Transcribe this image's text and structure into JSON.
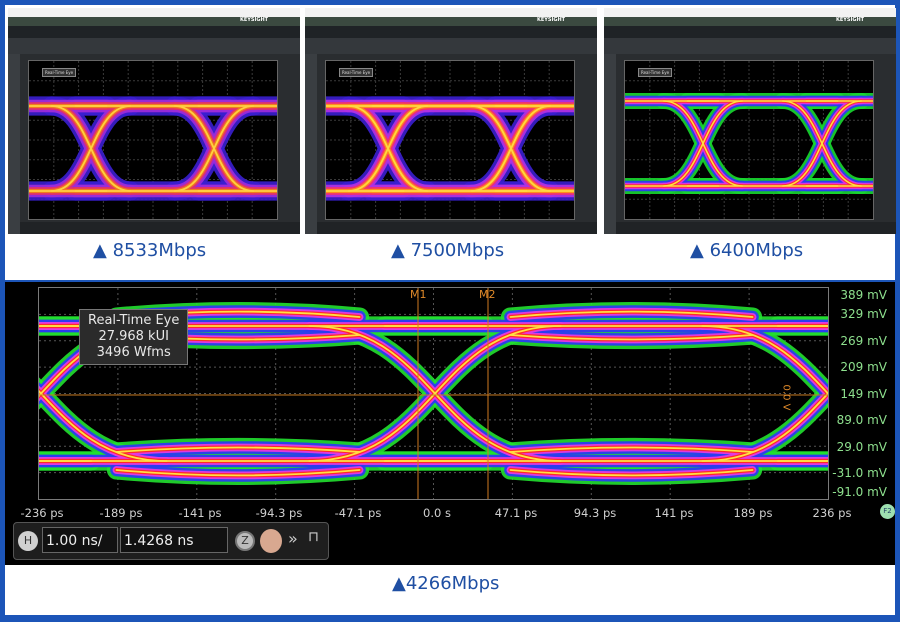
{
  "panels": [
    {
      "caption": "▲ 8533Mbps",
      "brand": "KEYSIGHT",
      "readout": "Real-Time Eye",
      "palette": [
        "#3a1fd0",
        "#9b2bd8",
        "#e0306a",
        "#f07a20",
        "#ffd040"
      ]
    },
    {
      "caption": "▲ 7500Mbps",
      "brand": "KEYSIGHT",
      "readout": "Real-Time Eye",
      "palette": [
        "#3a1fd0",
        "#b030e0",
        "#f03070",
        "#ff8a20",
        "#ffd840"
      ]
    },
    {
      "caption": "▲ 6400Mbps",
      "brand": "KEYSIGHT",
      "readout": "Real-Time Eye",
      "palette": [
        "#18d830",
        "#2a3cf0",
        "#e030e0",
        "#ff3030",
        "#ffe040"
      ]
    }
  ],
  "main": {
    "caption": "▲4266Mbps",
    "readout": {
      "title": "Real-Time Eye",
      "ui": "27.968 kUI",
      "waveforms": "3496 Wfms"
    },
    "y_labels": [
      "389 mV",
      "329 mV",
      "269 mV",
      "209 mV",
      "149 mV",
      "89.0 mV",
      "29.0 mV",
      "-31.0 mV",
      "-91.0 mV"
    ],
    "x_labels": [
      "-236 ps",
      "-189 ps",
      "-141 ps",
      "-94.3 ps",
      "-47.1 ps",
      "0.0 s",
      "47.1 ps",
      "94.3 ps",
      "141 ps",
      "189 ps",
      "236 ps"
    ],
    "markers": [
      "M1",
      "M2"
    ],
    "threshold_label": "0.0 V",
    "horizontal": {
      "button": "H",
      "scale": "1.00 ns/",
      "position": "1.4268 ns"
    },
    "zoom_button": "Z",
    "f2_badge": "F2",
    "palette": [
      "#22e030",
      "#2a3cf0",
      "#e838e0",
      "#ff2a2a",
      "#ffe040"
    ]
  }
}
